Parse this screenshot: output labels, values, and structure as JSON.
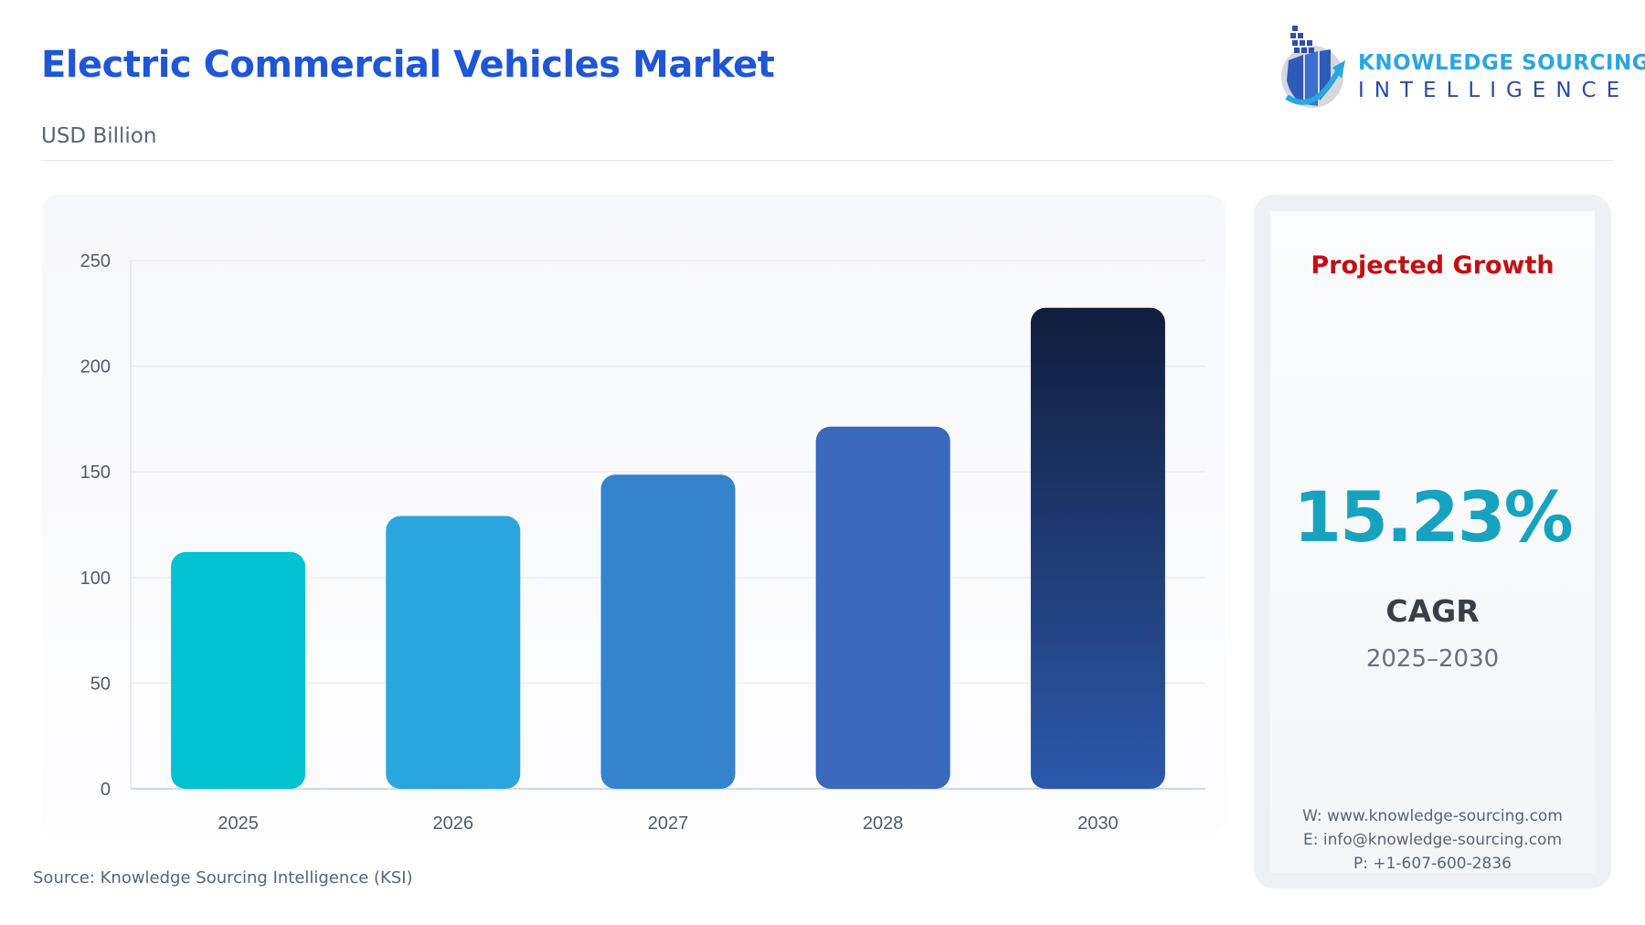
{
  "header": {
    "title": "Electric Commercial Vehicles Market",
    "subtitle": "USD Billion"
  },
  "logo": {
    "line1": "KNOWLEDGE SOURCING",
    "line2": "INTELLIGENCE"
  },
  "chart_data": {
    "type": "bar",
    "categories": [
      "2025",
      "2026",
      "2027",
      "2028",
      "2030"
    ],
    "values": [
      112.0,
      129.1,
      148.7,
      171.4,
      227.6
    ],
    "ylabel": "USD Billion",
    "ylim": [
      0,
      250
    ],
    "yticks": [
      0,
      50,
      100,
      150,
      200,
      250
    ],
    "grid": true,
    "colors": [
      "#00c2d1",
      "#2ca6de",
      "#3483cc",
      "#3a68bd",
      "#1a2f5e"
    ]
  },
  "side_panel": {
    "heading": "Projected Growth",
    "cagr_value": "15.23%",
    "cagr_label": "CAGR",
    "period": "2025–2030",
    "website": "W: www.knowledge-sourcing.com",
    "email": "E: info@knowledge-sourcing.com",
    "phone": "P: +1-607-600-2836"
  },
  "footer": {
    "source": "Source: Knowledge Sourcing Intelligence (KSI)"
  }
}
